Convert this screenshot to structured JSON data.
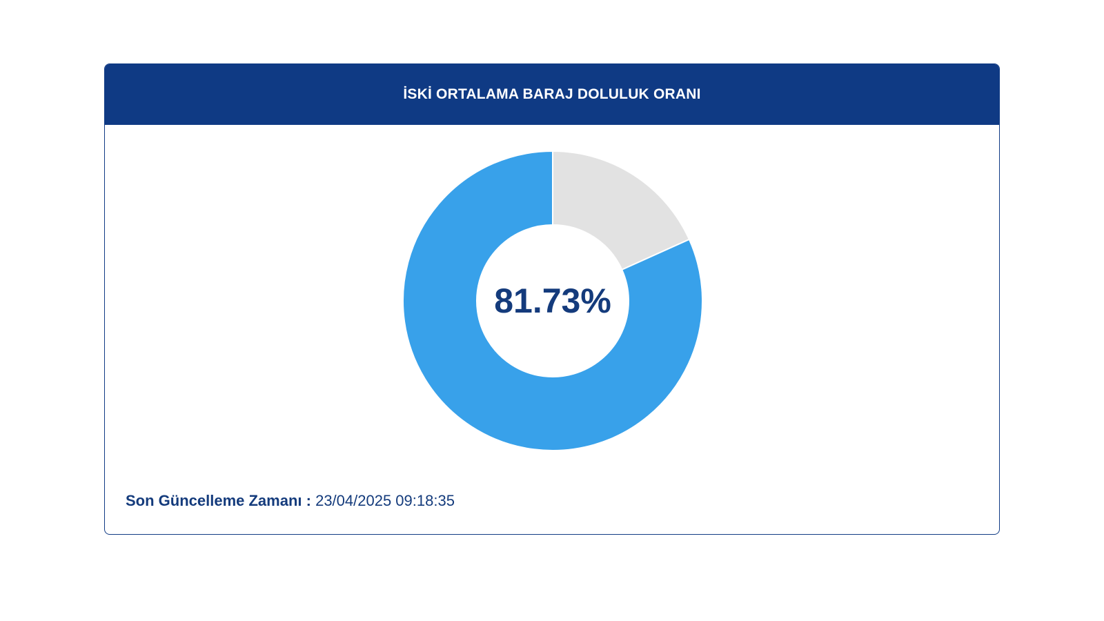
{
  "card": {
    "title": "İSKİ ORTALAMA BARAJ DOLULUK ORANI"
  },
  "chart_data": {
    "type": "pie",
    "variant": "donut",
    "center_text": "81.73%",
    "slices": [
      {
        "value": 81.73,
        "color": "#38a1ea"
      },
      {
        "value": 18.27,
        "color": "#e2e2e2"
      }
    ]
  },
  "footer": {
    "label": "Son Güncelleme Zamanı :",
    "value": "23/04/2025 09:18:35"
  },
  "colors": {
    "header_bg": "#0f3a84",
    "text_dark_blue": "#143b7c",
    "fill_blue": "#38a1ea",
    "empty_gray": "#e2e2e2"
  }
}
